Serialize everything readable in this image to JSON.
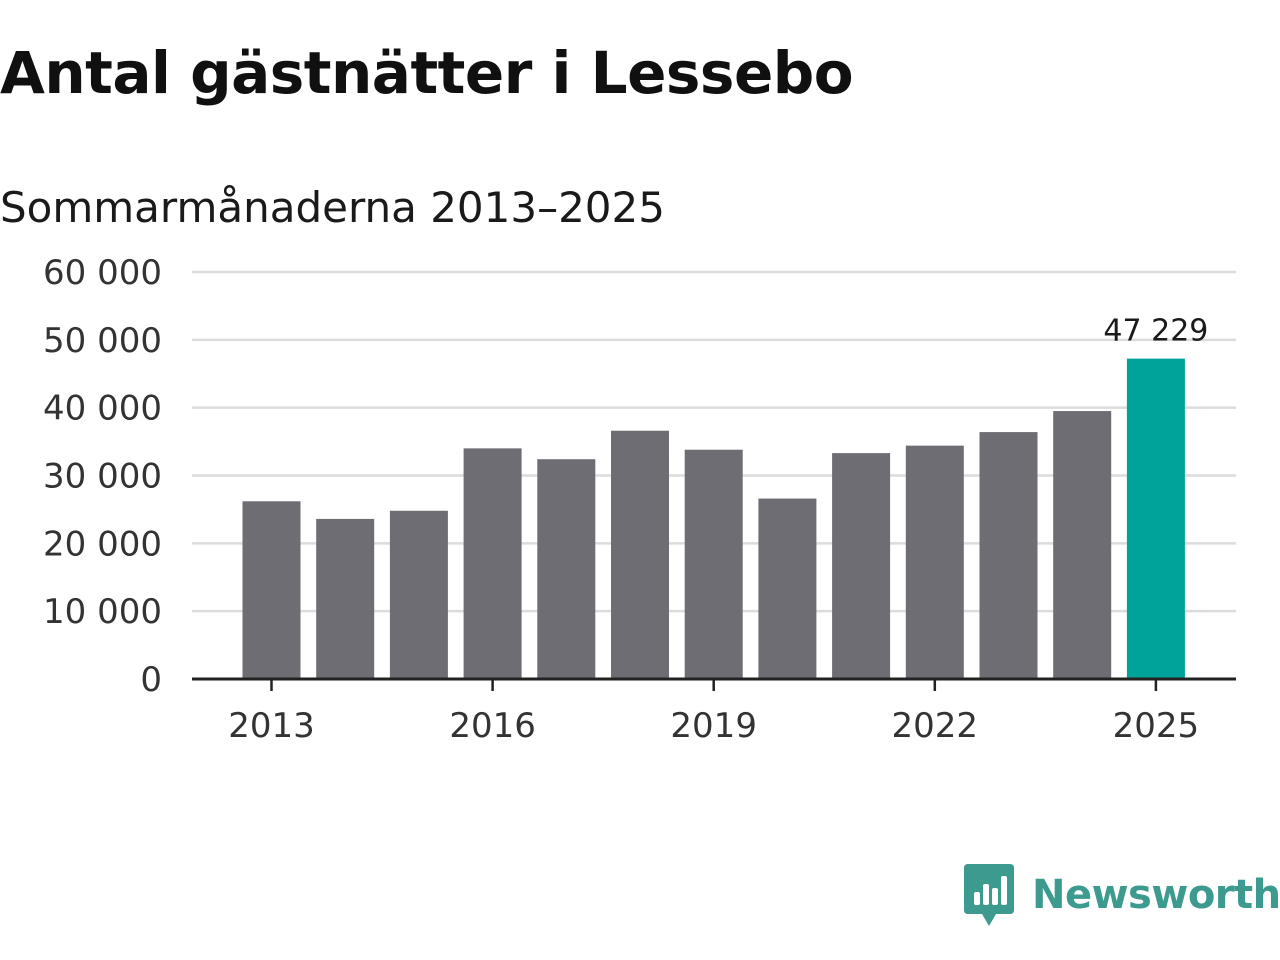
{
  "colors": {
    "bar": "#6e6d73",
    "highlight": "#00a39a",
    "grid": "#dcdcdc",
    "axis": "#222222",
    "brand": "#3d9a8f"
  },
  "brand": {
    "name": "Newsworthy",
    "icon": "newsworthy-logo-icon"
  },
  "chart_data": {
    "type": "bar",
    "title": "Antal gästnätter i Lessebo",
    "subtitle": "Sommarmånaderna 2013–2025",
    "xlabel": "",
    "ylabel": "",
    "categories": [
      "2013",
      "2014",
      "2015",
      "2016",
      "2017",
      "2018",
      "2019",
      "2020",
      "2021",
      "2022",
      "2023",
      "2024",
      "2025"
    ],
    "values": [
      26200,
      23600,
      24800,
      34000,
      32400,
      36600,
      33800,
      26600,
      33300,
      34400,
      36400,
      39500,
      47229
    ],
    "highlight_index": 12,
    "value_label": "47 229",
    "ylim": [
      0,
      60000
    ],
    "yticks": [
      0,
      10000,
      20000,
      30000,
      40000,
      50000,
      60000
    ],
    "ytick_labels": [
      "0",
      "10 000",
      "20 000",
      "30 000",
      "40 000",
      "50 000",
      "60 000"
    ],
    "xtick_labels": [
      "2013",
      "2016",
      "2019",
      "2022",
      "2025"
    ],
    "grid": true,
    "legend": "none"
  }
}
